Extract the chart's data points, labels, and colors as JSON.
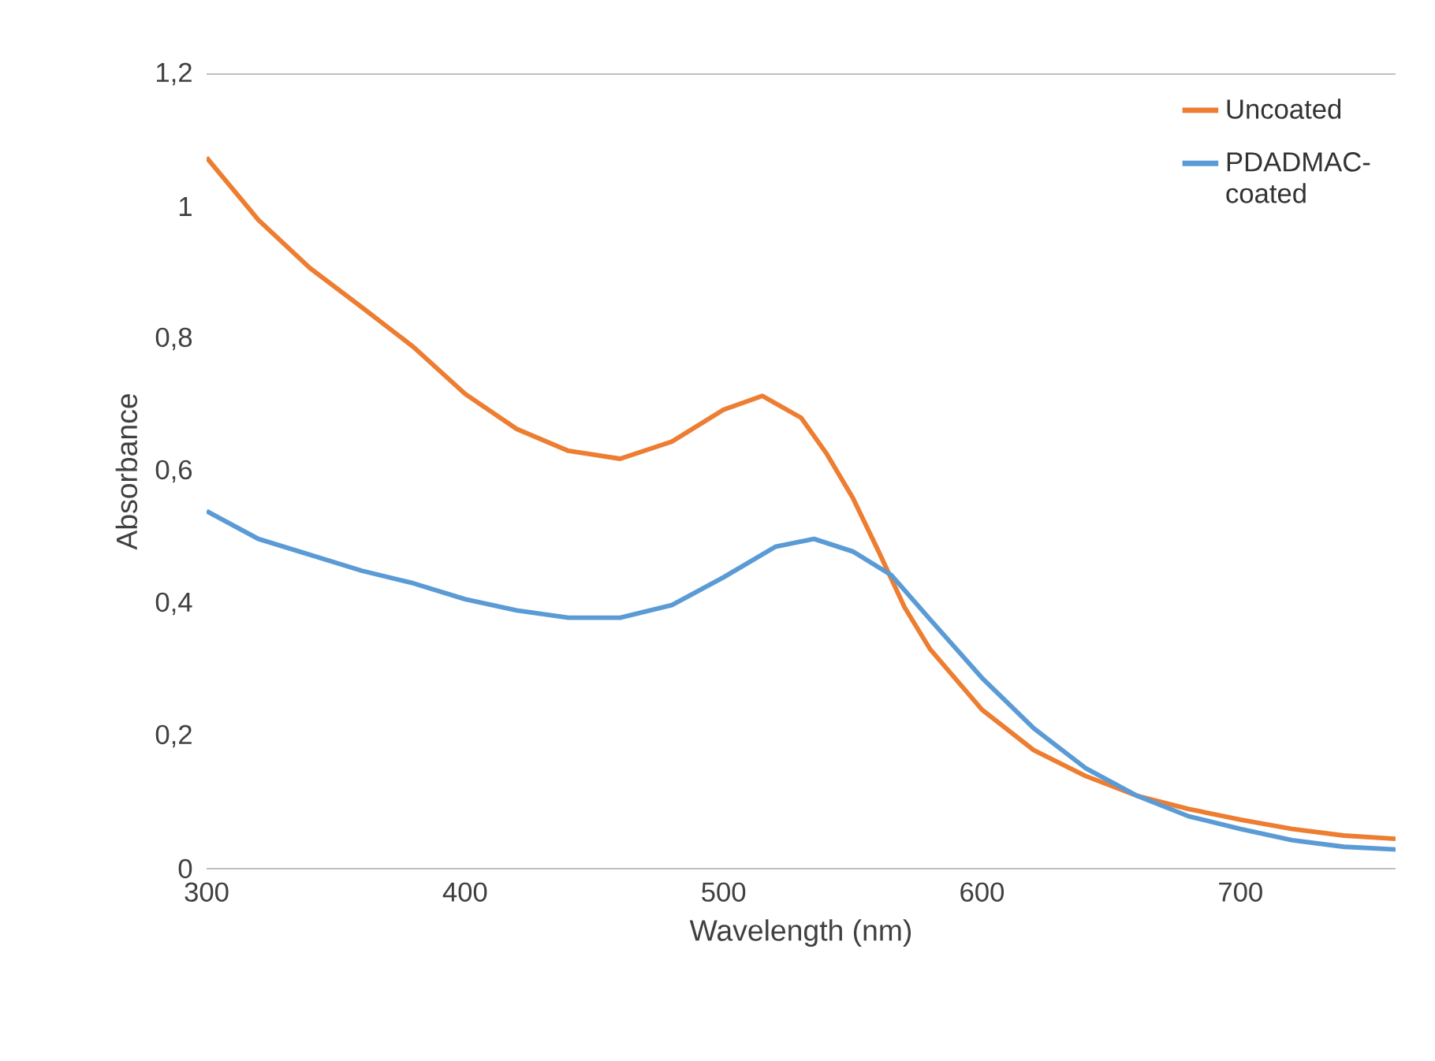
{
  "chart_data": {
    "type": "line",
    "xlabel": "Wavelength (nm)",
    "ylabel": "Absorbance",
    "xlim": [
      300,
      760
    ],
    "ylim": [
      0,
      1.2
    ],
    "xticks": [
      300,
      400,
      500,
      600,
      700
    ],
    "yticks": [
      0,
      {
        "value": 0.2,
        "label": "0,2"
      },
      {
        "value": 0.4,
        "label": "0,4"
      },
      {
        "value": 0.6,
        "label": "0,6"
      },
      {
        "value": 0.8,
        "label": "0,8"
      },
      1,
      {
        "value": 1.2,
        "label": "1,2"
      }
    ],
    "legend": "top right",
    "grid": false,
    "series": [
      {
        "name": "Uncoated",
        "color": "#ed7d31",
        "x": [
          300,
          320,
          340,
          360,
          380,
          400,
          420,
          440,
          460,
          480,
          500,
          515,
          530,
          540,
          550,
          560,
          570,
          580,
          600,
          620,
          640,
          660,
          680,
          700,
          720,
          740,
          760
        ],
        "values": [
          1.074,
          0.98,
          0.907,
          0.848,
          0.788,
          0.717,
          0.664,
          0.631,
          0.619,
          0.645,
          0.693,
          0.714,
          0.681,
          0.626,
          0.56,
          0.479,
          0.395,
          0.331,
          0.24,
          0.179,
          0.14,
          0.11,
          0.09,
          0.074,
          0.06,
          0.05,
          0.045
        ]
      },
      {
        "name": "PDADMAC-coated",
        "color": "#5b9bd5",
        "x": [
          300,
          320,
          340,
          360,
          380,
          400,
          420,
          440,
          460,
          480,
          500,
          520,
          535,
          550,
          565,
          580,
          600,
          620,
          640,
          660,
          680,
          700,
          720,
          740,
          760
        ],
        "values": [
          0.54,
          0.498,
          0.474,
          0.45,
          0.431,
          0.407,
          0.39,
          0.379,
          0.379,
          0.398,
          0.44,
          0.486,
          0.498,
          0.479,
          0.443,
          0.376,
          0.288,
          0.212,
          0.152,
          0.11,
          0.079,
          0.06,
          0.043,
          0.033,
          0.029
        ]
      }
    ]
  }
}
